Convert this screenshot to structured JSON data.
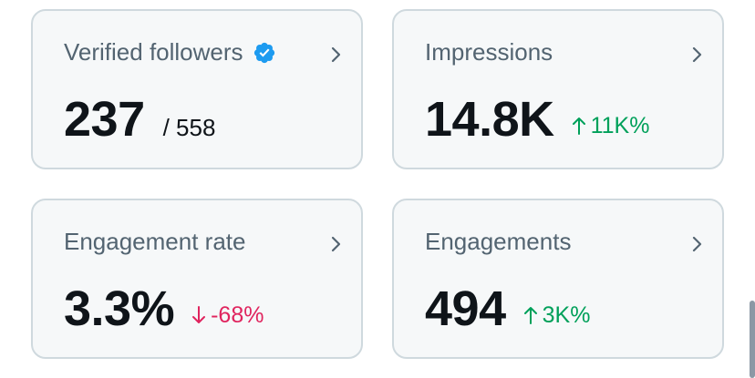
{
  "cards": [
    {
      "title": "Verified followers",
      "value": "237",
      "total": "/ 558",
      "verified": true
    },
    {
      "title": "Impressions",
      "value": "14.8K",
      "change": "11K%",
      "direction": "up"
    },
    {
      "title": "Engagement rate",
      "value": "3.3%",
      "change": "-68%",
      "direction": "down"
    },
    {
      "title": "Engagements",
      "value": "494",
      "change": "3K%",
      "direction": "up"
    }
  ],
  "colors": {
    "card_bg": "#f6f8f9",
    "card_border": "#cfd9de",
    "up": "#00a05a",
    "down": "#e0245e",
    "verified": "#1d9bf0"
  },
  "icons": {
    "verified": "verified-badge-icon",
    "chevron": "chevron-right-icon",
    "up": "arrow-up-icon",
    "down": "arrow-down-icon"
  }
}
